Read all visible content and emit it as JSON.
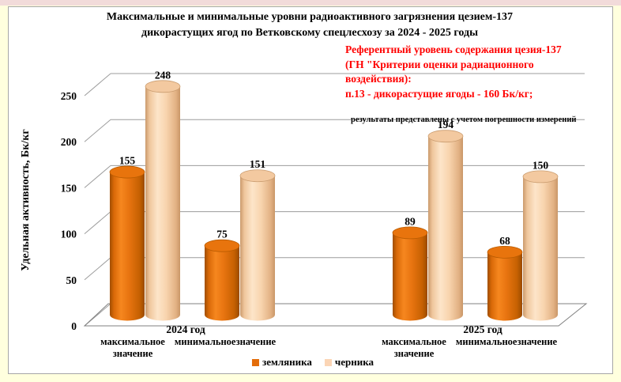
{
  "page": {
    "background": "#FFFFDE",
    "top_strip_color": "#F2DBDA",
    "chart_background": "#FFFFFF",
    "border_color": "#A6A6A6"
  },
  "title": {
    "line1": "Максимальные и минимальные уровни радиоактивного загрязнения цезием-137",
    "line2": "дикорастущих ягод по Ветковскому спецлесхозу за 2024 - 2025 годы"
  },
  "annotation": {
    "color": "#FF0000",
    "lines": [
      "Референтный уровень содержания цезия-137",
      "(ГН \"Критерии оценки радиационного",
      "воздействия):",
      "п.13 - дикорастущие ягоды - 160 Бк/кг;"
    ],
    "note": "результаты представлены с учетом погрешности измерений"
  },
  "chart_data": {
    "type": "bar",
    "style": "3d-cylinder",
    "title": "Максимальные и минимальные уровни радиоактивного загрязнения цезием-137 дикорастущих ягод по Ветковскому спецлесхозу за 2024 - 2025 годы",
    "ylabel": "Удельная активность, Бк/кг",
    "ylim": [
      0,
      250
    ],
    "ytick_step": 50,
    "yticks": [
      0,
      50,
      100,
      150,
      200,
      250
    ],
    "grid": true,
    "legend_position": "bottom",
    "group_labels": [
      "2024 год",
      "2025 год"
    ],
    "categories": [
      "максимальное значение",
      "минимальное значение",
      "максимальное значение",
      "минимальное значение"
    ],
    "series": [
      {
        "name": "земляника",
        "color": "#E36C09",
        "values": [
          155,
          75,
          89,
          68
        ]
      },
      {
        "name": "черника",
        "color": "#FBD5B5",
        "values": [
          248,
          151,
          194,
          150
        ]
      }
    ],
    "grid_color": "#9C9C9C",
    "axis_color": "#808080"
  }
}
